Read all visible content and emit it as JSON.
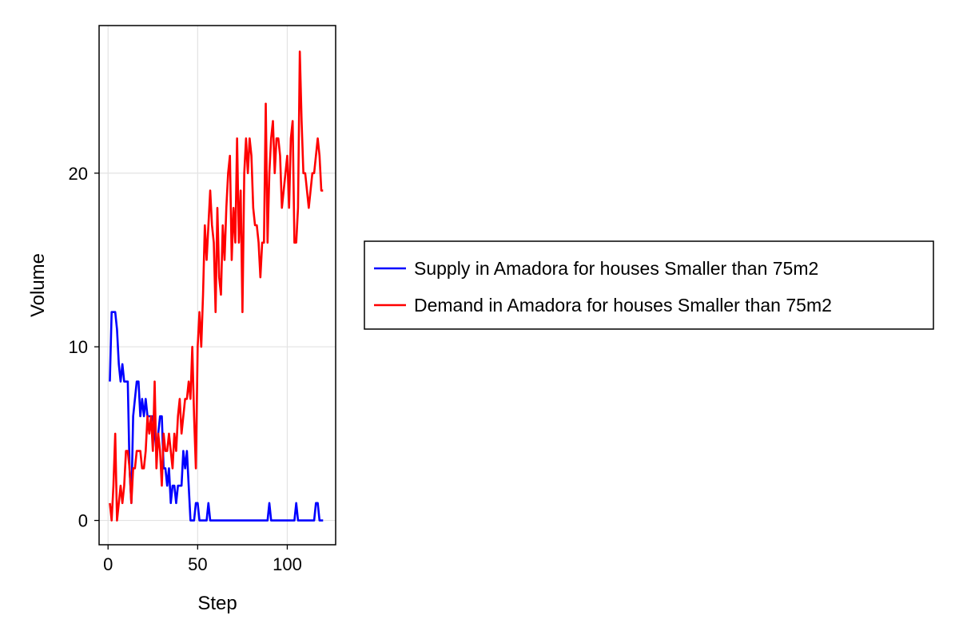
{
  "chart_data": {
    "type": "line",
    "xlabel": "Step",
    "ylabel": "Volume",
    "xlim": [
      -5,
      127
    ],
    "ylim": [
      -1.4,
      28.5
    ],
    "xticks": [
      0,
      50,
      100
    ],
    "yticks": [
      0,
      10,
      20
    ],
    "grid": true,
    "legend_position": "right",
    "series": [
      {
        "name": "Supply in Amadora for houses Smaller than 75m2",
        "color": "#0000ff",
        "x": [
          1,
          2,
          3,
          4,
          5,
          6,
          7,
          8,
          9,
          10,
          11,
          12,
          13,
          14,
          15,
          16,
          17,
          18,
          19,
          20,
          21,
          22,
          23,
          24,
          25,
          26,
          27,
          28,
          29,
          30,
          31,
          32,
          33,
          34,
          35,
          36,
          37,
          38,
          39,
          40,
          41,
          42,
          43,
          44,
          45,
          46,
          47,
          48,
          49,
          50,
          51,
          52,
          53,
          54,
          55,
          56,
          57,
          58,
          59,
          60,
          61,
          62,
          63,
          64,
          65,
          66,
          67,
          68,
          69,
          70,
          71,
          72,
          73,
          74,
          75,
          76,
          77,
          78,
          79,
          80,
          81,
          82,
          83,
          84,
          85,
          86,
          87,
          88,
          89,
          90,
          91,
          92,
          93,
          94,
          95,
          96,
          97,
          98,
          99,
          100,
          101,
          102,
          103,
          104,
          105,
          106,
          107,
          108,
          109,
          110,
          111,
          112,
          113,
          114,
          115,
          116,
          117,
          118,
          119,
          120
        ],
        "values": [
          8,
          12,
          12,
          12,
          11,
          9,
          8,
          9,
          8,
          8,
          8,
          3,
          1,
          6,
          7,
          8,
          8,
          6,
          7,
          6,
          7,
          6,
          6,
          6,
          6,
          5,
          4,
          5,
          6,
          6,
          3,
          3,
          2,
          3,
          1,
          2,
          2,
          1,
          2,
          2,
          2,
          4,
          3,
          4,
          2,
          0,
          0,
          0,
          1,
          1,
          0,
          0,
          0,
          0,
          0,
          1,
          0,
          0,
          0,
          0,
          0,
          0,
          0,
          0,
          0,
          0,
          0,
          0,
          0,
          0,
          0,
          0,
          0,
          0,
          0,
          0,
          0,
          0,
          0,
          0,
          0,
          0,
          0,
          0,
          0,
          0,
          0,
          0,
          0,
          1,
          0,
          0,
          0,
          0,
          0,
          0,
          0,
          0,
          0,
          0,
          0,
          0,
          0,
          0,
          1,
          0,
          0,
          0,
          0,
          0,
          0,
          0,
          0,
          0,
          0,
          1,
          1,
          0,
          0,
          0
        ]
      },
      {
        "name": "Demand in Amadora for houses Smaller than 75m2",
        "color": "#ff0000",
        "x": [
          1,
          2,
          3,
          4,
          5,
          6,
          7,
          8,
          9,
          10,
          11,
          12,
          13,
          14,
          15,
          16,
          17,
          18,
          19,
          20,
          21,
          22,
          23,
          24,
          25,
          26,
          27,
          28,
          29,
          30,
          31,
          32,
          33,
          34,
          35,
          36,
          37,
          38,
          39,
          40,
          41,
          42,
          43,
          44,
          45,
          46,
          47,
          48,
          49,
          50,
          51,
          52,
          53,
          54,
          55,
          56,
          57,
          58,
          59,
          60,
          61,
          62,
          63,
          64,
          65,
          66,
          67,
          68,
          69,
          70,
          71,
          72,
          73,
          74,
          75,
          76,
          77,
          78,
          79,
          80,
          81,
          82,
          83,
          84,
          85,
          86,
          87,
          88,
          89,
          90,
          91,
          92,
          93,
          94,
          95,
          96,
          97,
          98,
          99,
          100,
          101,
          102,
          103,
          104,
          105,
          106,
          107,
          108,
          109,
          110,
          111,
          112,
          113,
          114,
          115,
          116,
          117,
          118,
          119,
          120
        ],
        "values": [
          1,
          0,
          2,
          5,
          0,
          1,
          2,
          1,
          2,
          4,
          4,
          3,
          1,
          3,
          3,
          4,
          4,
          4,
          3,
          3,
          4,
          6,
          5,
          6,
          4,
          8,
          3,
          5,
          4,
          2,
          5,
          4,
          4,
          5,
          4,
          3,
          5,
          4,
          6,
          7,
          5,
          6,
          7,
          7,
          8,
          7,
          10,
          6,
          3,
          10,
          12,
          10,
          13,
          17,
          15,
          17,
          19,
          17,
          16,
          12,
          18,
          14,
          13,
          17,
          15,
          18,
          20,
          21,
          15,
          18,
          16,
          22,
          16,
          19,
          12,
          20,
          22,
          20,
          22,
          21,
          18,
          17,
          17,
          16,
          14,
          16,
          16,
          24,
          16,
          20,
          22,
          23,
          20,
          22,
          22,
          21,
          18,
          19,
          20,
          21,
          18,
          22,
          23,
          16,
          16,
          18,
          27,
          23,
          20,
          20,
          19,
          18,
          19,
          20,
          20,
          21,
          22,
          21,
          19,
          19
        ]
      }
    ]
  }
}
